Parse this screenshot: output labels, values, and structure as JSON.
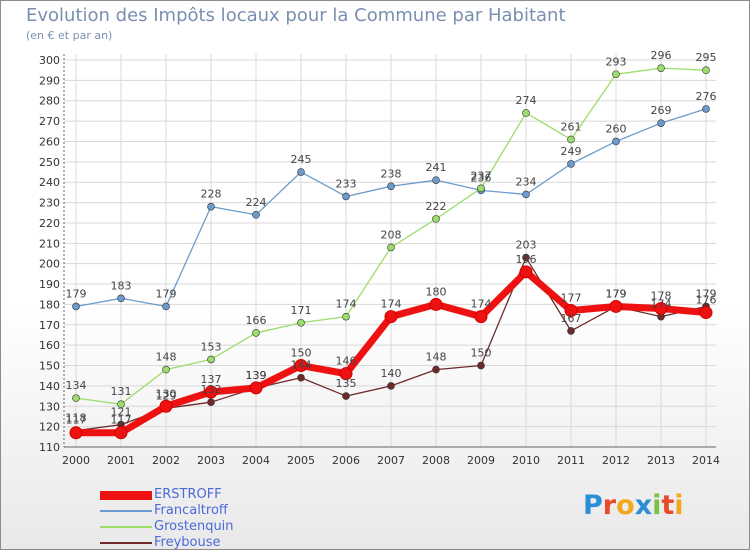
{
  "chart_title": "Evolution des Impôts locaux pour la Commune par Habitant",
  "chart_subtitle": "(en € et par an)",
  "logo_text": "Proxiti",
  "colors": {
    "ERSTROFF": "#ee1111",
    "Francaltroff": "#6b9bcc",
    "Grostenquin": "#9bdc6a",
    "Freybouse": "#6e2a2a",
    "grid": "#d8d8d8",
    "axis_text": "#333333",
    "label_text": "#444444"
  },
  "chart_data": {
    "type": "line",
    "title": "Evolution des Impôts locaux pour la Commune par Habitant",
    "subtitle": "(en € et par an)",
    "x": [
      2000,
      2001,
      2002,
      2003,
      2004,
      2005,
      2006,
      2007,
      2008,
      2009,
      2010,
      2011,
      2012,
      2013,
      2014
    ],
    "ylim": [
      110,
      300
    ],
    "yticks": [
      110,
      120,
      130,
      140,
      150,
      160,
      170,
      180,
      190,
      200,
      210,
      220,
      230,
      240,
      250,
      260,
      270,
      280,
      290,
      300
    ],
    "grid": true,
    "legend_position": "bottom-left",
    "series": [
      {
        "name": "Francaltroff",
        "values": [
          179,
          183,
          179,
          228,
          224,
          245,
          233,
          238,
          241,
          236,
          234,
          249,
          260,
          269,
          276
        ]
      },
      {
        "name": "Grostenquin",
        "values": [
          134,
          131,
          148,
          153,
          166,
          171,
          174,
          208,
          222,
          237,
          274,
          261,
          293,
          296,
          295
        ]
      },
      {
        "name": "Freybouse",
        "values": [
          118,
          121,
          129,
          132,
          139,
          144,
          135,
          140,
          148,
          150,
          203,
          167,
          179,
          174,
          179
        ]
      },
      {
        "name": "ERSTROFF",
        "values": [
          117,
          117,
          130,
          137,
          139,
          150,
          146,
          174,
          180,
          174,
          196,
          177,
          179,
          178,
          176
        ]
      }
    ]
  }
}
